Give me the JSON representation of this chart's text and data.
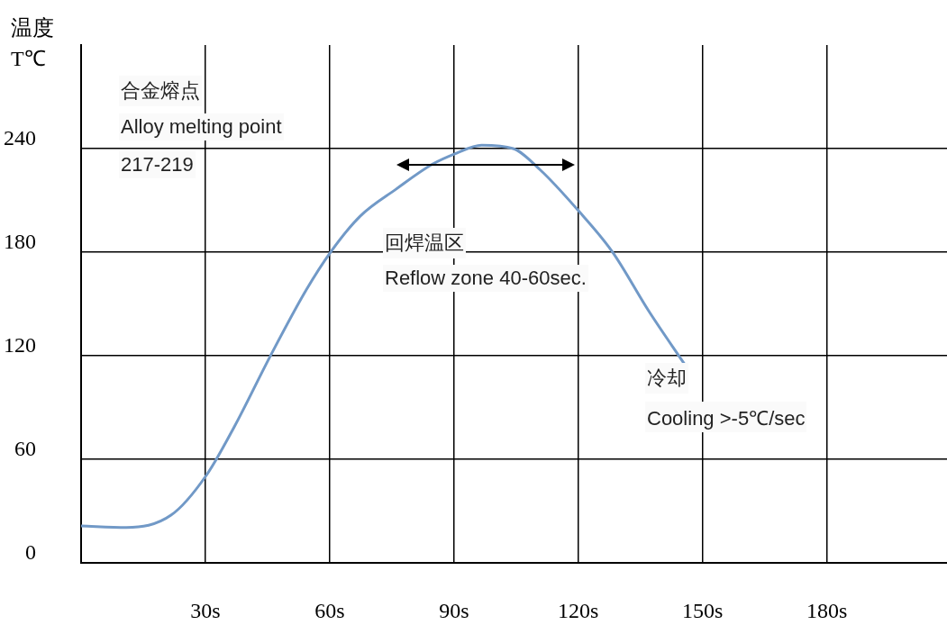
{
  "chart_data": {
    "type": "line",
    "ylabel": "温度\nT℃",
    "x": [
      0,
      10.9,
      21.7,
      30.2,
      37,
      45.7,
      54.3,
      60.2,
      67.4,
      76,
      84.8,
      90.2,
      96.7,
      104.3,
      110.9,
      120.2,
      128.3,
      137,
      145.7
    ],
    "series": [
      {
        "color": "#7199c7",
        "values": [
          21.5,
          20.6,
          27.7,
          50.7,
          79,
          120,
          158,
          180,
          201,
          216.5,
          231,
          237,
          242,
          240,
          227.5,
          203.6,
          180,
          146,
          115
        ]
      }
    ],
    "xlim": [
      0,
      209
    ],
    "ylim": [
      0,
      300
    ],
    "xticks": [
      {
        "value": 30,
        "label": "30s"
      },
      {
        "value": 60,
        "label": "60s"
      },
      {
        "value": 90,
        "label": "90s"
      },
      {
        "value": 120,
        "label": "120s"
      },
      {
        "value": 150,
        "label": "150s"
      },
      {
        "value": 180,
        "label": "180s"
      }
    ],
    "yticks": [
      0,
      60,
      120,
      180,
      240
    ],
    "grid": true,
    "legend": false,
    "marker": "none",
    "line_style": "solid",
    "annotations": [
      "合金熔点",
      "Alloy melting point",
      "217-219",
      "回焊温区",
      "Reflow zone 40-60sec.",
      "冷却",
      "Cooling >-5℃/sec"
    ]
  }
}
